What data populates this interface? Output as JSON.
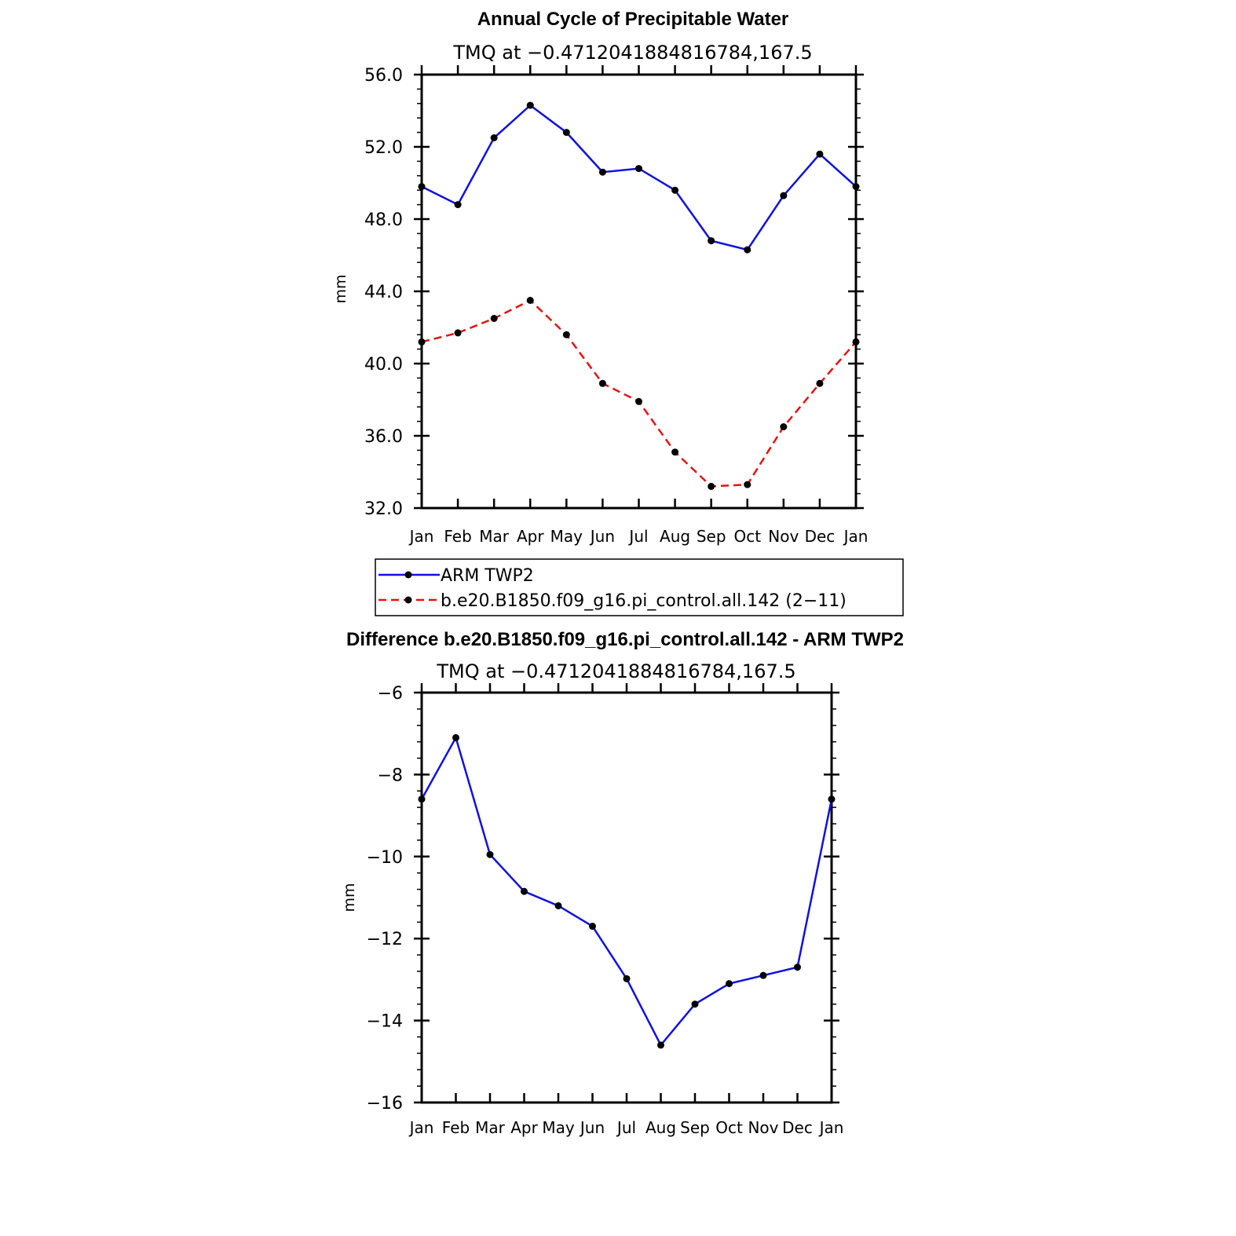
{
  "chart_data": [
    {
      "type": "line",
      "title": "Annual Cycle of Precipitable Water",
      "subtitle": "TMQ at −0.4712041884816784,167.5",
      "xlabel": "",
      "ylabel": "mm",
      "categories": [
        "Jan",
        "Feb",
        "Mar",
        "Apr",
        "May",
        "Jun",
        "Jul",
        "Aug",
        "Sep",
        "Oct",
        "Nov",
        "Dec",
        "Jan"
      ],
      "ylim": [
        32.0,
        56.0
      ],
      "yticks": [
        "32.0",
        "36.0",
        "40.0",
        "44.0",
        "48.0",
        "52.0",
        "56.0"
      ],
      "series": [
        {
          "name": "ARM TWP2",
          "color": "#1010e0",
          "dash": "solid",
          "values": [
            49.8,
            48.8,
            52.5,
            54.3,
            52.8,
            50.6,
            50.8,
            49.6,
            46.8,
            46.3,
            49.3,
            51.6,
            49.8
          ]
        },
        {
          "name": "b.e20.B1850.f09_g16.pi_control.all.142 (2−11)",
          "color": "#e81010",
          "dash": "dashed",
          "values": [
            41.2,
            41.7,
            42.5,
            43.5,
            41.6,
            38.9,
            37.9,
            35.1,
            33.2,
            33.3,
            36.5,
            38.9,
            41.2
          ]
        }
      ],
      "legend": {
        "placement": "below",
        "entries": [
          "ARM TWP2",
          "b.e20.B1850.f09_g16.pi_control.all.142 (2−11)"
        ]
      }
    },
    {
      "type": "line",
      "title": "Difference b.e20.B1850.f09_g16.pi_control.all.142 - ARM TWP2",
      "subtitle": "TMQ at −0.4712041884816784,167.5",
      "xlabel": "",
      "ylabel": "mm",
      "categories": [
        "Jan",
        "Feb",
        "Mar",
        "Apr",
        "May",
        "Jun",
        "Jul",
        "Aug",
        "Sep",
        "Oct",
        "Nov",
        "Dec",
        "Jan"
      ],
      "ylim": [
        -16,
        -6
      ],
      "yticks": [
        "−16",
        "−14",
        "−12",
        "−10",
        "−8",
        "−6"
      ],
      "series": [
        {
          "name": "Difference",
          "color": "#1010e0",
          "dash": "solid",
          "values": [
            -8.6,
            -7.1,
            -9.95,
            -10.85,
            -11.2,
            -11.7,
            -12.98,
            -14.6,
            -13.6,
            -13.1,
            -12.9,
            -12.7,
            -8.6
          ]
        }
      ]
    }
  ]
}
